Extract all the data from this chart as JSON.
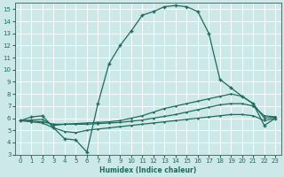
{
  "xlabel": "Humidex (Indice chaleur)",
  "xlim": [
    -0.5,
    23.5
  ],
  "ylim": [
    3,
    15.5
  ],
  "xticks": [
    0,
    1,
    2,
    3,
    4,
    5,
    6,
    7,
    8,
    9,
    10,
    11,
    12,
    13,
    14,
    15,
    16,
    17,
    18,
    19,
    20,
    21,
    22,
    23
  ],
  "yticks": [
    3,
    4,
    5,
    6,
    7,
    8,
    9,
    10,
    11,
    12,
    13,
    14,
    15
  ],
  "bg_color": "#cce8e8",
  "line_color": "#1e6b5e",
  "grid_color": "#ffffff",
  "curve1_x": [
    0,
    1,
    2,
    3,
    4,
    5,
    6,
    7,
    8,
    9,
    10,
    11,
    12,
    13,
    14,
    15,
    16,
    17,
    18,
    19,
    20,
    21,
    22,
    23
  ],
  "curve1_y": [
    5.8,
    6.1,
    6.2,
    5.2,
    4.3,
    4.2,
    3.2,
    7.2,
    10.5,
    12.0,
    13.2,
    14.5,
    14.8,
    15.2,
    15.3,
    15.2,
    14.8,
    13.0,
    9.2,
    8.5,
    7.8,
    7.2,
    5.4,
    6.0
  ],
  "curve2_x": [
    0,
    1,
    2,
    3,
    4,
    5,
    6,
    7,
    8,
    9,
    10,
    11,
    12,
    13,
    14,
    15,
    16,
    17,
    18,
    19,
    20,
    21,
    22,
    23
  ],
  "curve2_y": [
    5.8,
    5.85,
    5.9,
    5.4,
    5.5,
    5.55,
    5.6,
    5.65,
    5.7,
    5.8,
    6.0,
    6.2,
    6.5,
    6.8,
    7.0,
    7.2,
    7.4,
    7.6,
    7.8,
    8.0,
    7.8,
    7.2,
    6.0,
    6.1
  ],
  "curve3_x": [
    0,
    1,
    2,
    3,
    4,
    5,
    6,
    7,
    8,
    9,
    10,
    11,
    12,
    13,
    14,
    15,
    16,
    17,
    18,
    19,
    20,
    21,
    22,
    23
  ],
  "curve3_y": [
    5.8,
    5.75,
    5.7,
    5.5,
    5.5,
    5.5,
    5.5,
    5.55,
    5.6,
    5.65,
    5.75,
    5.85,
    6.0,
    6.15,
    6.3,
    6.5,
    6.7,
    6.9,
    7.1,
    7.2,
    7.2,
    7.0,
    6.2,
    6.1
  ],
  "curve4_x": [
    0,
    1,
    2,
    3,
    4,
    5,
    6,
    7,
    8,
    9,
    10,
    11,
    12,
    13,
    14,
    15,
    16,
    17,
    18,
    19,
    20,
    21,
    22,
    23
  ],
  "curve4_y": [
    5.8,
    5.7,
    5.6,
    5.2,
    4.9,
    4.8,
    5.0,
    5.1,
    5.2,
    5.3,
    5.4,
    5.5,
    5.6,
    5.7,
    5.8,
    5.9,
    6.0,
    6.1,
    6.2,
    6.3,
    6.3,
    6.2,
    5.8,
    6.0
  ]
}
